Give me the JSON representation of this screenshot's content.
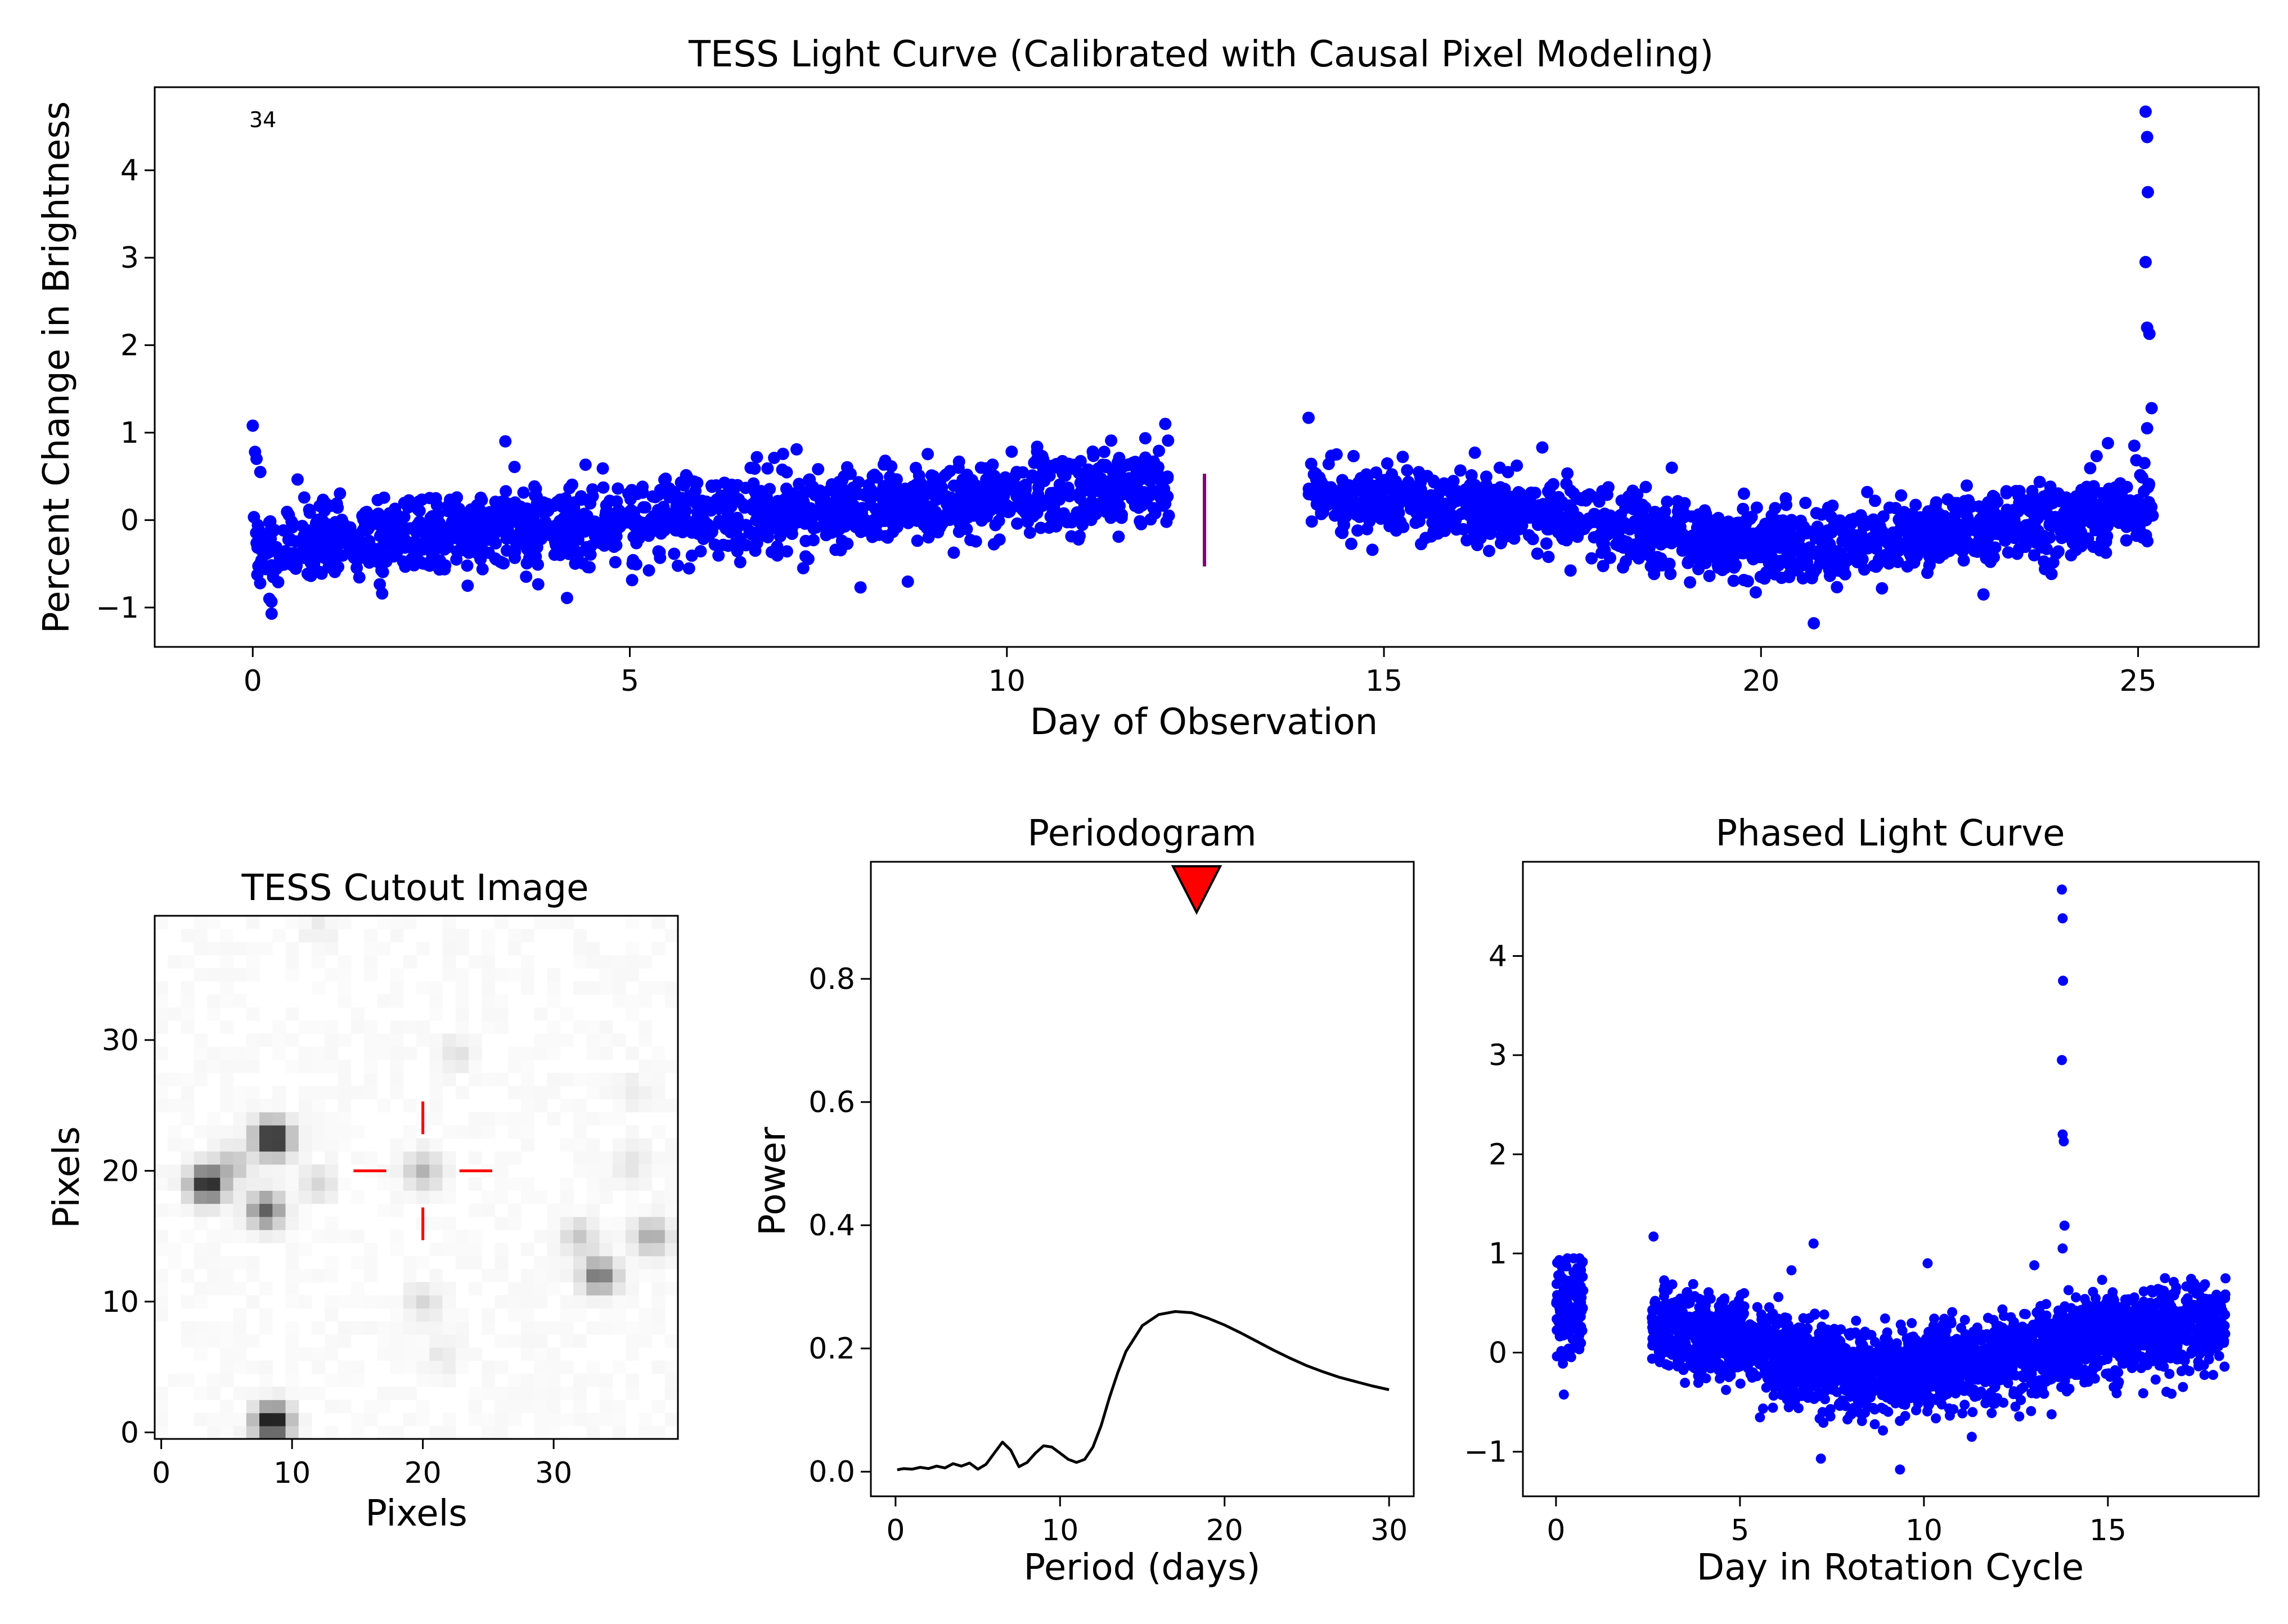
{
  "figure": {
    "colors": {
      "points": "#0000ff",
      "gap_marker": "#800080",
      "crosshair": "#ff0000",
      "peak_marker": "#ff0000",
      "curve": "#000000"
    }
  },
  "chart_data": [
    {
      "id": "lightcurve",
      "type": "scatter",
      "title": "TESS Light Curve (Calibrated with Causal Pixel Modeling)",
      "xlabel": "Day of Observation",
      "ylabel": "Percent Change in Brightness",
      "annotation": "34",
      "xlim": [
        -1.3,
        26.6
      ],
      "ylim": [
        -1.45,
        4.95
      ],
      "xticks": [
        0,
        5,
        10,
        15,
        20,
        25
      ],
      "yticks": [
        -1,
        0,
        1,
        2,
        3,
        4
      ],
      "gap_marker": {
        "x": 12.62,
        "y_range": [
          -0.53,
          0.53
        ]
      },
      "segments": [
        {
          "x_range": [
            0.0,
            12.15
          ],
          "trend": [
            [
              0.0,
              -0.35
            ],
            [
              2.0,
              -0.15
            ],
            [
              6.0,
              0.05
            ],
            [
              10.0,
              0.25
            ],
            [
              12.15,
              0.45
            ]
          ],
          "scatter": 0.22
        },
        {
          "x_range": [
            14.0,
            25.2
          ],
          "trend": [
            [
              14.0,
              0.3
            ],
            [
              16.0,
              0.15
            ],
            [
              18.0,
              -0.05
            ],
            [
              20.0,
              -0.3
            ],
            [
              21.0,
              -0.3
            ],
            [
              23.0,
              -0.05
            ],
            [
              25.2,
              0.15
            ]
          ],
          "scatter": 0.2
        }
      ],
      "outliers": [
        [
          0.0,
          1.08
        ],
        [
          0.03,
          0.78
        ],
        [
          0.05,
          0.7
        ],
        [
          0.1,
          0.55
        ],
        [
          0.22,
          -0.9
        ],
        [
          0.25,
          -1.07
        ],
        [
          3.35,
          0.9
        ],
        [
          2.85,
          -0.75
        ],
        [
          7.3,
          -0.55
        ],
        [
          12.1,
          1.1
        ],
        [
          14.0,
          1.17
        ],
        [
          17.1,
          0.83
        ],
        [
          20.7,
          -1.18
        ],
        [
          22.95,
          -0.85
        ],
        [
          24.6,
          0.88
        ],
        [
          24.95,
          0.85
        ],
        [
          25.1,
          4.67
        ],
        [
          25.12,
          4.38
        ],
        [
          25.13,
          3.75
        ],
        [
          25.1,
          2.95
        ],
        [
          25.12,
          2.2
        ],
        [
          25.15,
          2.13
        ],
        [
          25.18,
          1.28
        ],
        [
          25.12,
          1.05
        ]
      ]
    },
    {
      "id": "cutout",
      "type": "heatmap",
      "title": "TESS Cutout Image",
      "xlabel": "Pixels",
      "ylabel": "Pixels",
      "xlim": [
        -0.5,
        39.5
      ],
      "ylim": [
        -0.5,
        39.5
      ],
      "xticks": [
        0,
        10,
        20,
        30
      ],
      "yticks": [
        0,
        10,
        20,
        30
      ],
      "target": [
        20,
        20
      ],
      "sources": [
        [
          8.5,
          22.5,
          1.0
        ],
        [
          3.5,
          19.0,
          0.9
        ],
        [
          8.0,
          17.0,
          0.6
        ],
        [
          8.5,
          0.8,
          1.0
        ],
        [
          20.0,
          20.0,
          0.3
        ],
        [
          33.5,
          12.0,
          0.55
        ],
        [
          37.5,
          15.0,
          0.35
        ],
        [
          32.0,
          15.0,
          0.2
        ],
        [
          12.0,
          19.0,
          0.15
        ],
        [
          20.0,
          10.0,
          0.15
        ],
        [
          22.5,
          29.0,
          0.1
        ],
        [
          36.0,
          20.5,
          0.1
        ],
        [
          21.5,
          6.0,
          0.08
        ],
        [
          36.0,
          26.0,
          0.06
        ],
        [
          12.0,
          38.5,
          0.06
        ],
        [
          5.5,
          20.5,
          0.25
        ]
      ]
    },
    {
      "id": "periodogram",
      "type": "line",
      "title": "Periodogram",
      "xlabel": "Period (days)",
      "ylabel": "Power",
      "xlim": [
        -1.5,
        31.5
      ],
      "ylim": [
        -0.04,
        0.99
      ],
      "xticks": [
        0,
        10,
        20,
        30
      ],
      "yticks": [
        0.0,
        0.2,
        0.4,
        0.6,
        0.8
      ],
      "peak_marker": {
        "x": 18.3
      },
      "x": [
        0.1,
        0.5,
        1.0,
        1.5,
        2.0,
        2.5,
        3.0,
        3.5,
        4.0,
        4.5,
        5.0,
        5.5,
        6.0,
        6.5,
        7.0,
        7.5,
        8.0,
        8.5,
        9.0,
        9.5,
        10.0,
        10.5,
        11.0,
        11.5,
        12.0,
        12.5,
        13.0,
        13.5,
        14.0,
        15.0,
        16.0,
        17.0,
        18.0,
        19.0,
        20.0,
        21.0,
        22.0,
        23.0,
        24.0,
        25.0,
        26.0,
        27.0,
        28.0,
        29.0,
        30.0
      ],
      "y": [
        0.003,
        0.005,
        0.004,
        0.007,
        0.005,
        0.009,
        0.006,
        0.013,
        0.009,
        0.014,
        0.004,
        0.012,
        0.03,
        0.048,
        0.035,
        0.008,
        0.015,
        0.03,
        0.042,
        0.04,
        0.03,
        0.02,
        0.015,
        0.02,
        0.04,
        0.075,
        0.12,
        0.16,
        0.195,
        0.237,
        0.255,
        0.26,
        0.258,
        0.249,
        0.238,
        0.225,
        0.211,
        0.197,
        0.184,
        0.172,
        0.162,
        0.153,
        0.146,
        0.139,
        0.133
      ]
    },
    {
      "id": "phased",
      "type": "scatter",
      "title": "Phased Light Curve",
      "xlabel": "Day in Rotation Cycle",
      "ylabel": "",
      "xlim": [
        -0.9,
        19.1
      ],
      "ylim": [
        -1.45,
        4.95
      ],
      "xticks": [
        0,
        5,
        10,
        15
      ],
      "yticks": [
        -1,
        0,
        1,
        2,
        3,
        4
      ],
      "segments": [
        {
          "x_range": [
            0.0,
            0.75
          ],
          "trend": [
            [
              0.0,
              0.35
            ],
            [
              0.75,
              0.45
            ]
          ],
          "scatter": 0.25
        },
        {
          "x_range": [
            2.6,
            18.2
          ],
          "trend": [
            [
              2.6,
              0.25
            ],
            [
              5.0,
              0.1
            ],
            [
              7.0,
              -0.15
            ],
            [
              9.0,
              -0.2
            ],
            [
              11.0,
              -0.1
            ],
            [
              13.0,
              0.0
            ],
            [
              15.0,
              0.15
            ],
            [
              18.2,
              0.3
            ]
          ],
          "scatter": 0.2
        }
      ],
      "outliers": [
        [
          2.65,
          1.17
        ],
        [
          6.4,
          0.83
        ],
        [
          7.0,
          1.1
        ],
        [
          7.2,
          -1.07
        ],
        [
          9.35,
          -1.18
        ],
        [
          10.1,
          0.9
        ],
        [
          11.3,
          -0.85
        ],
        [
          13.0,
          0.88
        ],
        [
          13.75,
          4.67
        ],
        [
          13.77,
          4.38
        ],
        [
          13.78,
          3.75
        ],
        [
          13.75,
          2.95
        ],
        [
          13.77,
          2.2
        ],
        [
          13.8,
          2.13
        ],
        [
          13.82,
          1.28
        ],
        [
          13.77,
          1.05
        ]
      ]
    }
  ]
}
